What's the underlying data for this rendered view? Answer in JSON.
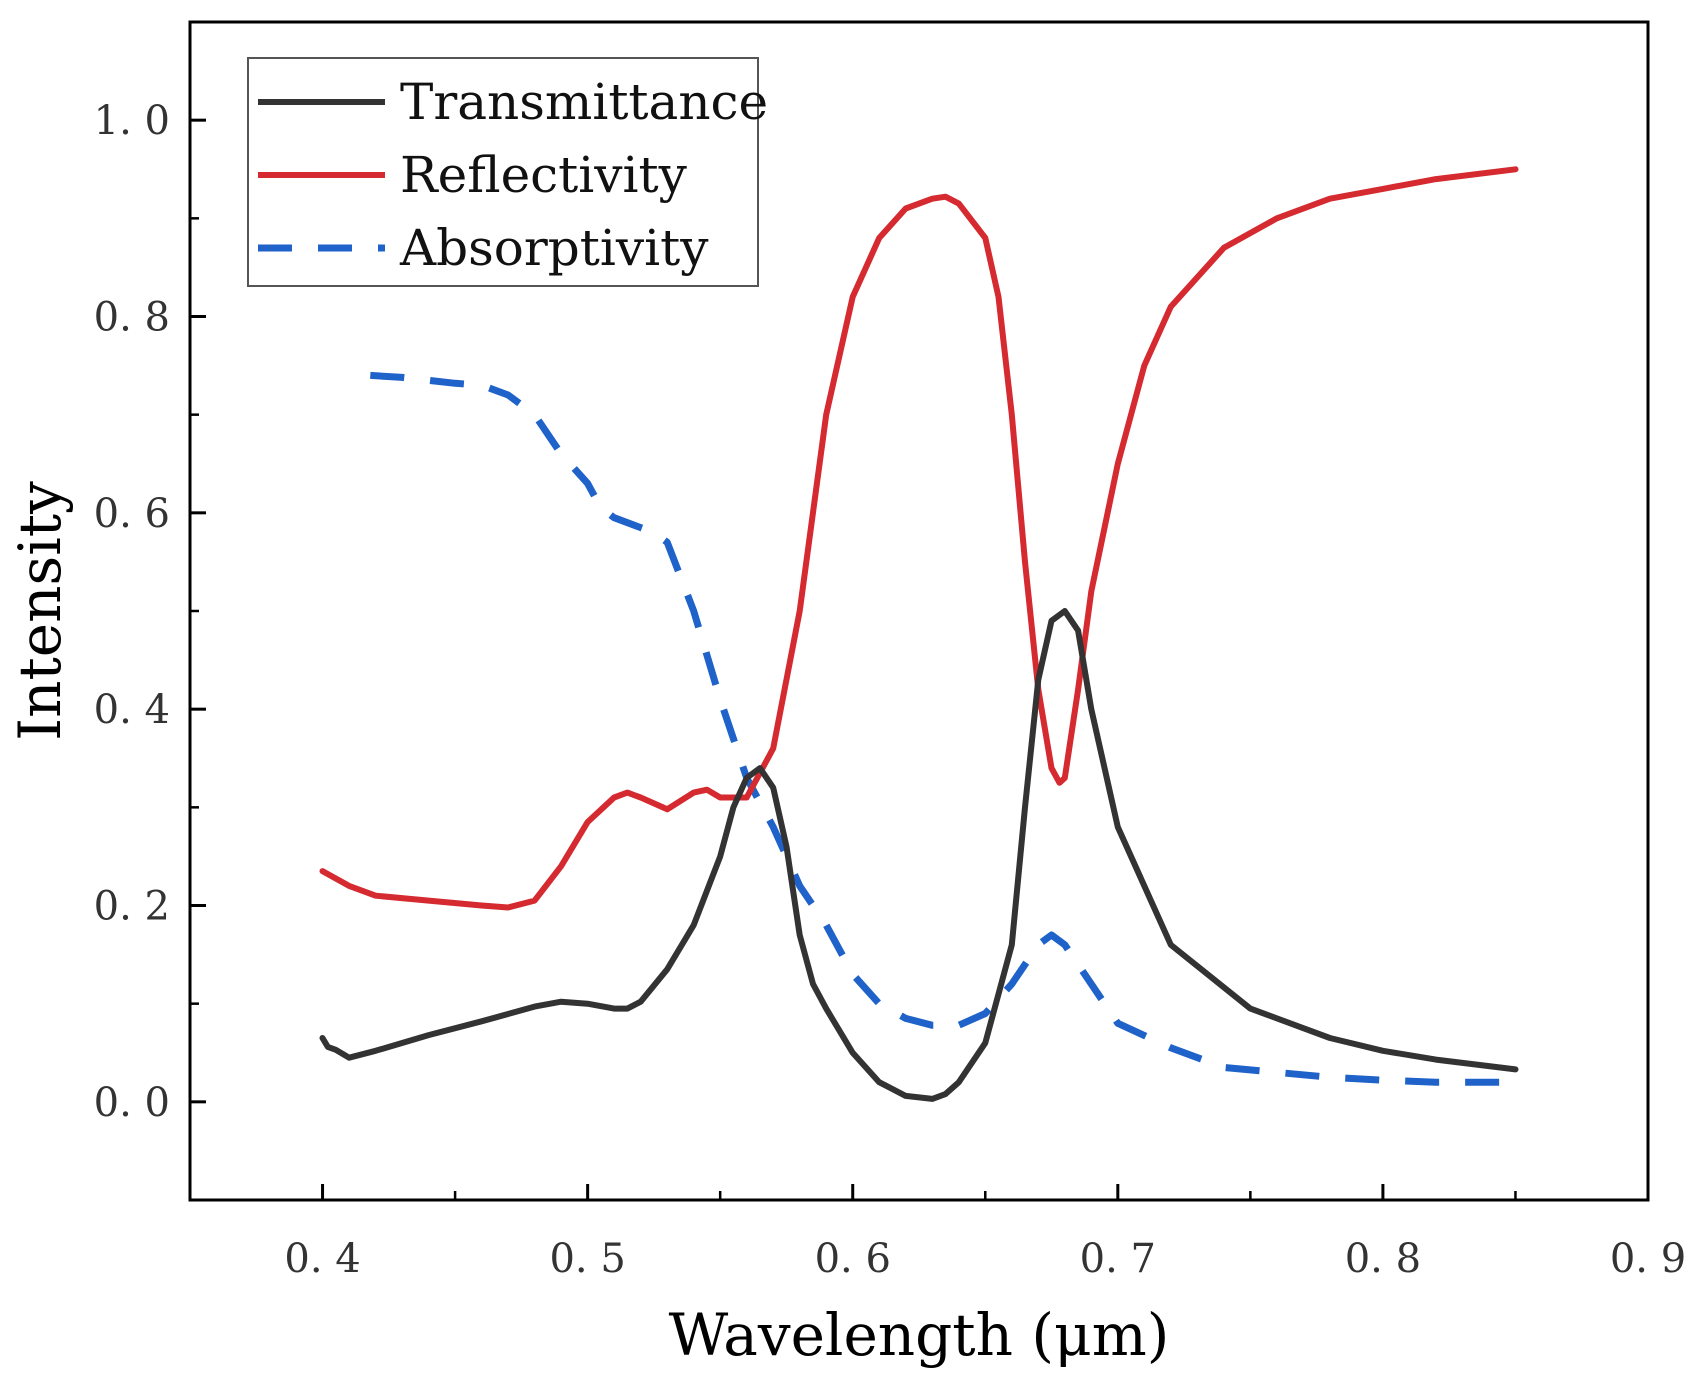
{
  "chart_data": {
    "type": "line",
    "title": "",
    "xlabel": "Wavelength (μm)",
    "ylabel": "Intensity",
    "xlim": [
      0.35,
      0.9
    ],
    "ylim": [
      -0.1,
      1.1
    ],
    "x_ticks": [
      0.4,
      0.5,
      0.6,
      0.7,
      0.8,
      0.9
    ],
    "x_tick_labels": [
      "0. 4",
      "0. 5",
      "0. 6",
      "0. 7",
      "0. 8",
      "0. 9"
    ],
    "y_ticks": [
      0.0,
      0.2,
      0.4,
      0.6,
      0.8,
      1.0
    ],
    "y_tick_labels": [
      "0. 0",
      "0. 2",
      "0. 4",
      "0. 6",
      "0. 8",
      "1. 0"
    ],
    "grid": false,
    "legend_position": "top-left",
    "series": [
      {
        "name": "Transmittance",
        "color": "#333333",
        "dash": "solid",
        "x": [
          0.4,
          0.402,
          0.405,
          0.41,
          0.42,
          0.44,
          0.46,
          0.48,
          0.49,
          0.5,
          0.51,
          0.515,
          0.52,
          0.53,
          0.54,
          0.55,
          0.555,
          0.56,
          0.565,
          0.57,
          0.575,
          0.58,
          0.585,
          0.59,
          0.6,
          0.61,
          0.62,
          0.63,
          0.635,
          0.64,
          0.65,
          0.66,
          0.665,
          0.67,
          0.675,
          0.68,
          0.685,
          0.69,
          0.7,
          0.72,
          0.75,
          0.78,
          0.8,
          0.82,
          0.85
        ],
        "y": [
          0.065,
          0.056,
          0.053,
          0.045,
          0.052,
          0.068,
          0.082,
          0.097,
          0.102,
          0.1,
          0.095,
          0.095,
          0.102,
          0.135,
          0.18,
          0.25,
          0.3,
          0.33,
          0.34,
          0.32,
          0.26,
          0.17,
          0.12,
          0.095,
          0.05,
          0.02,
          0.006,
          0.003,
          0.008,
          0.02,
          0.06,
          0.16,
          0.3,
          0.43,
          0.49,
          0.5,
          0.48,
          0.4,
          0.28,
          0.16,
          0.095,
          0.065,
          0.052,
          0.043,
          0.033
        ]
      },
      {
        "name": "Reflectivity",
        "color": "#d42a30",
        "dash": "solid",
        "x": [
          0.4,
          0.41,
          0.42,
          0.44,
          0.46,
          0.47,
          0.48,
          0.49,
          0.5,
          0.51,
          0.515,
          0.52,
          0.53,
          0.54,
          0.545,
          0.55,
          0.56,
          0.57,
          0.58,
          0.59,
          0.6,
          0.61,
          0.62,
          0.63,
          0.635,
          0.64,
          0.65,
          0.655,
          0.66,
          0.665,
          0.67,
          0.675,
          0.678,
          0.68,
          0.685,
          0.69,
          0.7,
          0.71,
          0.72,
          0.74,
          0.76,
          0.78,
          0.8,
          0.82,
          0.85
        ],
        "y": [
          0.235,
          0.22,
          0.21,
          0.205,
          0.2,
          0.198,
          0.205,
          0.24,
          0.285,
          0.31,
          0.315,
          0.31,
          0.298,
          0.315,
          0.318,
          0.31,
          0.31,
          0.36,
          0.5,
          0.7,
          0.82,
          0.88,
          0.91,
          0.92,
          0.922,
          0.915,
          0.88,
          0.82,
          0.7,
          0.55,
          0.42,
          0.34,
          0.325,
          0.33,
          0.42,
          0.52,
          0.65,
          0.75,
          0.81,
          0.87,
          0.9,
          0.92,
          0.93,
          0.94,
          0.95
        ]
      },
      {
        "name": "Absorptivity",
        "color": "#1f62c9",
        "dash": "dashed",
        "x": [
          0.418,
          0.43,
          0.44,
          0.45,
          0.46,
          0.47,
          0.48,
          0.49,
          0.5,
          0.505,
          0.51,
          0.52,
          0.525,
          0.53,
          0.54,
          0.55,
          0.555,
          0.56,
          0.57,
          0.58,
          0.59,
          0.6,
          0.61,
          0.62,
          0.63,
          0.64,
          0.65,
          0.66,
          0.67,
          0.675,
          0.68,
          0.69,
          0.7,
          0.72,
          0.74,
          0.76,
          0.78,
          0.8,
          0.82,
          0.85
        ],
        "y": [
          0.74,
          0.738,
          0.735,
          0.732,
          0.73,
          0.72,
          0.7,
          0.66,
          0.63,
          0.605,
          0.595,
          0.585,
          0.58,
          0.57,
          0.5,
          0.41,
          0.37,
          0.33,
          0.28,
          0.22,
          0.18,
          0.13,
          0.1,
          0.085,
          0.078,
          0.078,
          0.09,
          0.12,
          0.16,
          0.17,
          0.16,
          0.12,
          0.08,
          0.055,
          0.035,
          0.03,
          0.025,
          0.022,
          0.02,
          0.02
        ]
      }
    ]
  }
}
